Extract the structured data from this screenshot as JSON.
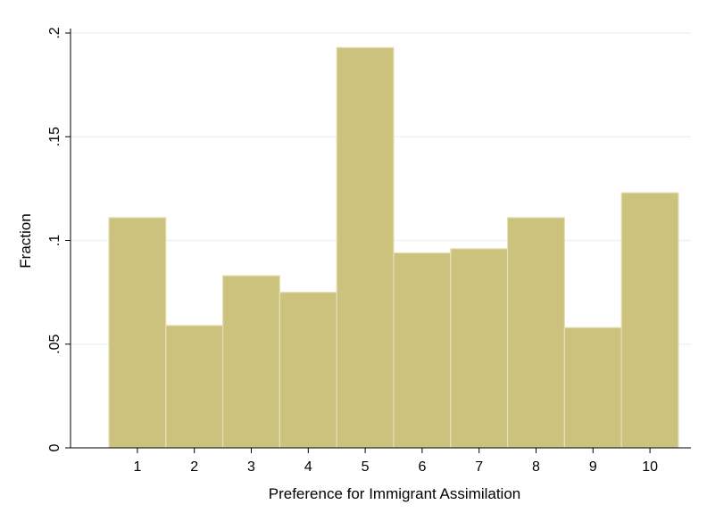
{
  "chart_data": {
    "type": "bar",
    "title": "",
    "xlabel": "Preference for Immigrant Assimilation",
    "ylabel": "Fraction",
    "categories": [
      "1",
      "2",
      "3",
      "4",
      "5",
      "6",
      "7",
      "8",
      "9",
      "10"
    ],
    "values": [
      0.111,
      0.059,
      0.083,
      0.075,
      0.193,
      0.094,
      0.096,
      0.111,
      0.058,
      0.123
    ],
    "ylim": [
      0,
      0.2
    ],
    "y_ticks": [
      {
        "value": 0,
        "label": "0"
      },
      {
        "value": 0.05,
        "label": ".05"
      },
      {
        "value": 0.1,
        "label": ".1"
      },
      {
        "value": 0.15,
        "label": ".15"
      },
      {
        "value": 0.2,
        "label": ".2"
      }
    ],
    "grid": true,
    "legend": "none",
    "colors": {
      "bar_fill": "#cbc27e",
      "bar_stroke": "#e6e0b6",
      "grid": "#eaf0f4",
      "axis": "#000000"
    }
  }
}
